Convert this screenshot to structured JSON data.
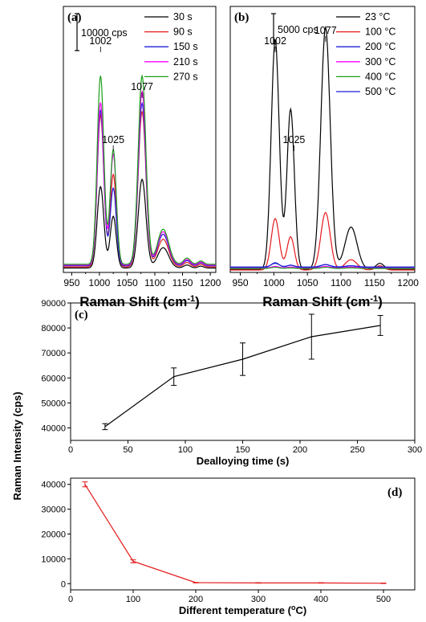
{
  "chart_data": [
    {
      "type": "line",
      "panel_label": "(a)",
      "xlabel": "Raman Shift (cm",
      "xlabel_sup": "-1",
      "xlabel_close": ")",
      "xlim": [
        935,
        1210
      ],
      "xticks": [
        950,
        1000,
        1050,
        1100,
        1150,
        1200
      ],
      "scalebar_label": "10000 cps",
      "scalebar_value": 10000,
      "ylim": [
        0,
        72000
      ],
      "peak_labels": [
        "1002",
        "1025",
        "1077"
      ],
      "peaks": [
        {
          "center": 1002,
          "width": 6
        },
        {
          "center": 1025,
          "width": 5.5
        },
        {
          "center": 1077,
          "width": 7
        },
        {
          "center": 1115,
          "width": 10
        },
        {
          "center": 1158,
          "width": 6
        },
        {
          "center": 1183,
          "width": 5
        }
      ],
      "series": [
        {
          "name": "30 s",
          "color": "#000000",
          "baseline": 1200,
          "amplitudes": [
            22000,
            14000,
            24000,
            5500,
            800,
            500
          ]
        },
        {
          "name": "90 s",
          "color": "#e41a1c",
          "baseline": 1500,
          "amplitudes": [
            41000,
            25000,
            42000,
            7500,
            1200,
            700
          ]
        },
        {
          "name": "150 s",
          "color": "#1f1fd8",
          "baseline": 1800,
          "amplitudes": [
            42000,
            21000,
            44000,
            8500,
            1400,
            800
          ]
        },
        {
          "name": "210 s",
          "color": "#ff00ff",
          "baseline": 2000,
          "amplitudes": [
            44000,
            30000,
            47000,
            9000,
            1500,
            800
          ]
        },
        {
          "name": "270 s",
          "color": "#1a9e1a",
          "baseline": 2200,
          "amplitudes": [
            51000,
            31000,
            51000,
            9500,
            1700,
            900
          ]
        }
      ]
    },
    {
      "type": "line",
      "panel_label": "(b)",
      "xlabel": "Raman Shift (cm",
      "xlabel_sup": "-1",
      "xlabel_close": ")",
      "xlim": [
        935,
        1210
      ],
      "xticks": [
        950,
        1000,
        1050,
        1100,
        1150,
        1200
      ],
      "scalebar_label": "5000 cps",
      "scalebar_value": 5000,
      "ylim": [
        0,
        44000
      ],
      "peak_labels": [
        "1002",
        "1025",
        "1077"
      ],
      "peaks": [
        {
          "center": 1002,
          "width": 6
        },
        {
          "center": 1025,
          "width": 5.5
        },
        {
          "center": 1077,
          "width": 7
        },
        {
          "center": 1115,
          "width": 9
        },
        {
          "center": 1158,
          "width": 6
        }
      ],
      "series": [
        {
          "name": "23 °C",
          "color": "#000000",
          "baseline": 500,
          "amplitudes": [
            38000,
            26500,
            40000,
            7000,
            1000
          ]
        },
        {
          "name": "100 °C",
          "color": "#e41a1c",
          "baseline": 400,
          "amplitudes": [
            8500,
            5500,
            9500,
            1700,
            700
          ]
        },
        {
          "name": "200 °C",
          "color": "#1f1fd8",
          "baseline": 800,
          "amplitudes": [
            800,
            400,
            500,
            300,
            0
          ]
        },
        {
          "name": "300 °C",
          "color": "#ff00ff",
          "baseline": 700,
          "amplitudes": [
            300,
            200,
            300,
            200,
            0
          ]
        },
        {
          "name": "400 °C",
          "color": "#1a9e1a",
          "baseline": 650,
          "amplitudes": [
            200,
            100,
            200,
            100,
            0
          ]
        },
        {
          "name": "500 °C",
          "color": "#1f1fd8",
          "baseline": 900,
          "amplitudes": [
            600,
            300,
            400,
            200,
            0
          ]
        }
      ]
    },
    {
      "type": "line",
      "panel_label": "(c)",
      "xlabel": "Dealloying time (s)",
      "xlim": [
        0,
        300
      ],
      "ylim": [
        35000,
        90000
      ],
      "xticks": [
        0,
        50,
        100,
        150,
        200,
        250,
        300
      ],
      "yticks": [
        40000,
        50000,
        60000,
        70000,
        80000,
        90000
      ],
      "x": [
        30,
        90,
        150,
        210,
        270
      ],
      "y": [
        40500,
        60500,
        67500,
        76500,
        81000
      ],
      "err": [
        1200,
        3500,
        6500,
        9000,
        4000
      ],
      "color": "#000000"
    },
    {
      "type": "line",
      "panel_label": "(d)",
      "xlabel": "Different temperature (",
      "xlabel_sup": "o",
      "xlabel_close": "C)",
      "xlim": [
        0,
        550
      ],
      "ylim": [
        -2500,
        42500
      ],
      "xticks": [
        0,
        100,
        200,
        300,
        400,
        500
      ],
      "yticks": [
        0,
        10000,
        20000,
        30000,
        40000
      ],
      "x": [
        23,
        100,
        200,
        300,
        400,
        500
      ],
      "y": [
        40000,
        9000,
        400,
        300,
        300,
        150
      ],
      "err": [
        1000,
        600,
        100,
        100,
        100,
        100
      ],
      "color": "#e41a1c"
    }
  ],
  "shared": {
    "ylabel": "Raman Intensity (cps)"
  }
}
